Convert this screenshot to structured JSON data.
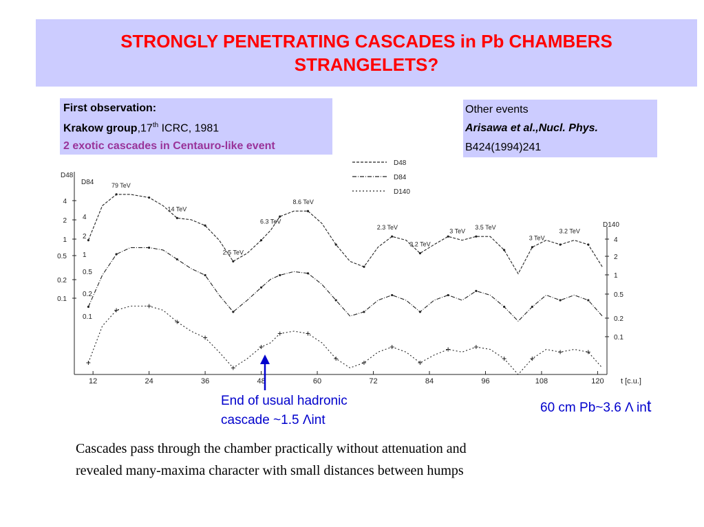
{
  "slide": {
    "title_line1": "STRONGLY PENETRATING CASCADES in Pb CHAMBERS",
    "title_line2": "STRANGELETS?",
    "first_obs_heading": "First observation:",
    "krakow_bold": "Krakow group",
    "krakow_comma": ",17",
    "krakow_sup": "th",
    "krakow_rest": " ICRC, 1981",
    "exotic": "2 exotic cascades in Centauro-like event",
    "other_events": "Other events",
    "arisawa": "Arisawa et al.,Nucl. Phys.",
    "arisawa_ref": "B424(1994)241",
    "end_note_line1": "End of usual hadronic",
    "end_note_line2": "cascade   ~1.5 Λint",
    "pb_note": "60 cm Pb~3.6 Λ in",
    "pb_note_tail": "t",
    "caption_line1": "Cascades pass through the chamber practically without attenuation and",
    "caption_line2": "revealed many-maxima character with small distances between humps"
  },
  "colors": {
    "title": "#ff0000",
    "box_bg": "#ccccff",
    "exotic": "#993399",
    "note_blue": "#0000cc",
    "plot_ink": "#222222"
  },
  "chart_data": {
    "type": "line",
    "xlabel": "t [c.u.]",
    "xlim": [
      8,
      122
    ],
    "xticks": [
      12,
      24,
      36,
      48,
      60,
      72,
      84,
      96,
      108,
      120
    ],
    "left_axis_labels": [
      "D48",
      "D84"
    ],
    "right_axis_label": "D140",
    "left_ticks_d48": [
      "4",
      "2",
      "1",
      "0.5",
      "0.2",
      "0.1"
    ],
    "left_ticks_d84": [
      "4",
      "2",
      "1",
      "0.5",
      "0.2",
      "0.1"
    ],
    "right_ticks_d140": [
      "4",
      "2",
      "1",
      "0.5",
      "0.2",
      "0.1"
    ],
    "legend": [
      "D48",
      "D84",
      "D140"
    ],
    "energy_labels": [
      {
        "text": "79 TeV",
        "t": 18
      },
      {
        "text": "14 TeV",
        "t": 30
      },
      {
        "text": "2.5 TeV",
        "t": 42
      },
      {
        "text": "6.3 TeV",
        "t": 50
      },
      {
        "text": "8.6 TeV",
        "t": 57
      },
      {
        "text": "2.3 TeV",
        "t": 75
      },
      {
        "text": "3.2 TeV",
        "t": 82
      },
      {
        "text": "3 TeV",
        "t": 90
      },
      {
        "text": "3.5 TeV",
        "t": 96
      },
      {
        "text": "3 TeV",
        "t": 107
      },
      {
        "text": "3.2 TeV",
        "t": 114
      }
    ],
    "series": [
      {
        "name": "D48",
        "t": [
          11,
          14,
          17,
          20,
          24,
          27,
          30,
          33,
          36,
          39,
          42,
          45,
          48,
          50,
          52,
          55,
          58,
          61,
          64,
          67,
          70,
          73,
          76,
          79,
          82,
          85,
          88,
          91,
          94,
          97,
          100,
          103,
          106,
          109,
          112,
          115,
          118,
          121
        ],
        "value": [
          0.6,
          2.5,
          4,
          4,
          3.5,
          2.5,
          1.5,
          1.4,
          1.1,
          0.6,
          0.25,
          0.35,
          0.6,
          0.9,
          1.6,
          2,
          2,
          1.2,
          0.5,
          0.25,
          0.2,
          0.45,
          0.7,
          0.6,
          0.35,
          0.5,
          0.7,
          0.6,
          0.7,
          0.7,
          0.4,
          0.15,
          0.45,
          0.6,
          0.5,
          0.6,
          0.5,
          0.2
        ]
      },
      {
        "name": "D84",
        "t": [
          11,
          14,
          17,
          20,
          24,
          27,
          30,
          33,
          36,
          39,
          42,
          45,
          48,
          50,
          52,
          55,
          58,
          61,
          64,
          67,
          70,
          73,
          76,
          79,
          82,
          85,
          88,
          91,
          94,
          97,
          100,
          103,
          106,
          109,
          112,
          115,
          118,
          121
        ],
        "value": [
          0.15,
          0.6,
          1.5,
          2,
          2,
          1.8,
          1.2,
          0.8,
          0.6,
          0.25,
          0.12,
          0.2,
          0.35,
          0.5,
          0.6,
          0.7,
          0.65,
          0.4,
          0.2,
          0.1,
          0.12,
          0.2,
          0.25,
          0.2,
          0.12,
          0.2,
          0.25,
          0.2,
          0.3,
          0.25,
          0.15,
          0.08,
          0.15,
          0.25,
          0.2,
          0.25,
          0.2,
          0.1
        ]
      },
      {
        "name": "D140",
        "t": [
          11,
          14,
          17,
          20,
          24,
          27,
          30,
          33,
          36,
          39,
          42,
          45,
          48,
          50,
          52,
          55,
          58,
          61,
          64,
          67,
          70,
          73,
          76,
          79,
          82,
          85,
          88,
          91,
          94,
          97,
          100,
          103,
          106,
          109,
          112,
          115,
          118,
          121
        ],
        "value": [
          0.05,
          0.25,
          0.5,
          0.6,
          0.6,
          0.5,
          0.3,
          0.2,
          0.15,
          0.08,
          0.04,
          0.06,
          0.1,
          0.12,
          0.18,
          0.2,
          0.18,
          0.12,
          0.06,
          0.04,
          0.05,
          0.08,
          0.1,
          0.08,
          0.05,
          0.07,
          0.09,
          0.08,
          0.1,
          0.09,
          0.06,
          0.03,
          0.06,
          0.09,
          0.08,
          0.09,
          0.08,
          0.04
        ]
      }
    ]
  }
}
